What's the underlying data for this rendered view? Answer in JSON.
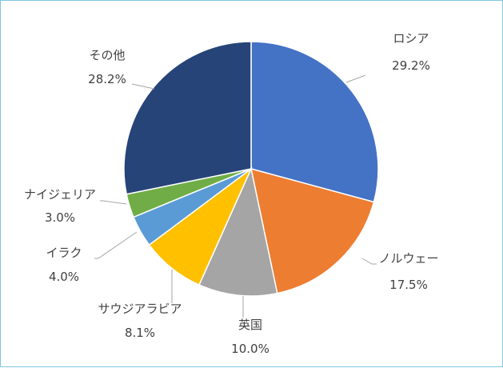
{
  "chart_data": {
    "type": "pie",
    "title": "",
    "slices": [
      {
        "label": "ロシア",
        "value": 29.2,
        "value_label": "29.2%",
        "color": "#4472c4"
      },
      {
        "label": "ノルウェー",
        "value": 17.5,
        "value_label": "17.5%",
        "color": "#ed7d31"
      },
      {
        "label": "英国",
        "value": 10.0,
        "value_label": "10.0%",
        "color": "#a5a5a5"
      },
      {
        "label": "サウジアラビア",
        "value": 8.1,
        "value_label": "8.1%",
        "color": "#ffc000"
      },
      {
        "label": "イラク",
        "value": 4.0,
        "value_label": "4.0%",
        "color": "#5b9bd5"
      },
      {
        "label": "ナイジェリア",
        "value": 3.0,
        "value_label": "3.0%",
        "color": "#70ad47"
      },
      {
        "label": "その他",
        "value": 28.2,
        "value_label": "28.2%",
        "color": "#264478"
      }
    ],
    "start_angle_deg": 0,
    "direction": "clockwise",
    "legend": "none",
    "data_labels": "outside with leader lines"
  }
}
